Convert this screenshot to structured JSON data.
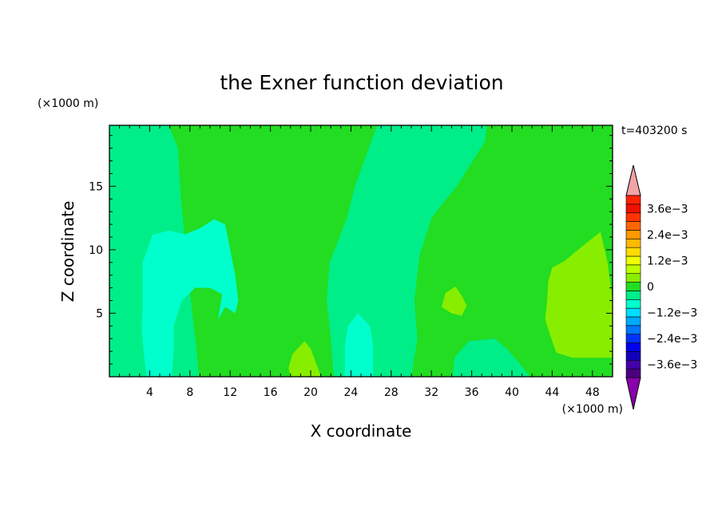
{
  "chart_data": {
    "type": "contour",
    "title": "the Exner function deviation",
    "xlabel": "X coordinate",
    "ylabel": "Z coordinate",
    "x_unit": "(×1000 m)",
    "y_unit": "(×1000 m)",
    "time_label": "t=403200 s",
    "xlim": [
      0,
      50
    ],
    "ylim": [
      0,
      19.8
    ],
    "x_ticks": [
      {
        "value": 4,
        "label": "4"
      },
      {
        "value": 8,
        "label": "8"
      },
      {
        "value": 12,
        "label": "12"
      },
      {
        "value": 16,
        "label": "16"
      },
      {
        "value": 20,
        "label": "20"
      },
      {
        "value": 24,
        "label": "24"
      },
      {
        "value": 28,
        "label": "28"
      },
      {
        "value": 32,
        "label": "32"
      },
      {
        "value": 36,
        "label": "36"
      },
      {
        "value": 40,
        "label": "40"
      },
      {
        "value": 44,
        "label": "44"
      },
      {
        "value": 48,
        "label": "48"
      }
    ],
    "y_ticks": [
      {
        "value": 5,
        "label": "5"
      },
      {
        "value": 10,
        "label": "10"
      },
      {
        "value": 15,
        "label": "15"
      }
    ],
    "background_level_color": "#22dd22",
    "regions": [
      {
        "name": "left-band-slightly-negative",
        "color": "#00ee88",
        "points": [
          [
            0,
            19.8
          ],
          [
            5.9,
            19.8
          ],
          [
            6.8,
            18.0
          ],
          [
            7.1,
            14.0
          ],
          [
            7.6,
            10.0
          ],
          [
            8.1,
            6.0
          ],
          [
            8.6,
            2.5
          ],
          [
            8.9,
            0
          ],
          [
            0,
            0
          ]
        ]
      },
      {
        "name": "right-band-slightly-negative",
        "color": "#00ee88",
        "points": [
          [
            30.0,
            0
          ],
          [
            30.6,
            3.0
          ],
          [
            30.3,
            6.0
          ],
          [
            30.8,
            9.5
          ],
          [
            32.0,
            12.5
          ],
          [
            34.5,
            15.0
          ],
          [
            37.3,
            18.5
          ],
          [
            37.5,
            19.8
          ],
          [
            26.6,
            19.8
          ],
          [
            24.4,
            15.0
          ],
          [
            23.6,
            12.5
          ],
          [
            21.9,
            9.0
          ],
          [
            21.6,
            6.0
          ],
          [
            22.0,
            3.0
          ],
          [
            22.3,
            0
          ]
        ]
      },
      {
        "name": "bottom-right-patch-slightly-negative",
        "color": "#00ee88",
        "points": [
          [
            34.3,
            1.5
          ],
          [
            35.7,
            2.8
          ],
          [
            38.3,
            3.0
          ],
          [
            39.5,
            2.2
          ],
          [
            40.8,
            1.0
          ],
          [
            41.8,
            0
          ],
          [
            34.1,
            0
          ]
        ]
      },
      {
        "name": "upper-left-cell-negative",
        "color": "#00ffcc",
        "points": [
          [
            3.3,
            5.5
          ],
          [
            3.3,
            9.0
          ],
          [
            4.3,
            11.2
          ],
          [
            6.0,
            11.5
          ],
          [
            7.5,
            11.2
          ],
          [
            9.0,
            11.7
          ],
          [
            10.4,
            12.4
          ],
          [
            11.5,
            12.0
          ],
          [
            12.0,
            10.0
          ],
          [
            12.5,
            8.0
          ],
          [
            12.8,
            6.0
          ],
          [
            12.5,
            5.0
          ],
          [
            11.5,
            5.5
          ],
          [
            10.8,
            4.5
          ],
          [
            11.2,
            6.5
          ],
          [
            10.0,
            7.0
          ],
          [
            8.5,
            7.0
          ],
          [
            7.2,
            6.0
          ],
          [
            6.4,
            4.0
          ],
          [
            6.4,
            2.0
          ],
          [
            6.2,
            0
          ],
          [
            3.7,
            0
          ],
          [
            3.4,
            2.0
          ],
          [
            3.2,
            4.0
          ]
        ]
      },
      {
        "name": "lower-middle-cell-negative",
        "color": "#00ffcc",
        "points": [
          [
            23.4,
            0
          ],
          [
            23.4,
            2.5
          ],
          [
            23.7,
            4.0
          ],
          [
            24.7,
            5.0
          ],
          [
            25.9,
            4.0
          ],
          [
            26.2,
            2.5
          ],
          [
            26.2,
            0
          ]
        ]
      },
      {
        "name": "bottom-center-patch-slightly-positive",
        "color": "#88ee00",
        "points": [
          [
            17.8,
            0.7
          ],
          [
            18.2,
            1.8
          ],
          [
            19.4,
            2.8
          ],
          [
            20.0,
            2.2
          ],
          [
            20.8,
            0.5
          ],
          [
            21.0,
            0
          ],
          [
            18.0,
            0
          ]
        ]
      },
      {
        "name": "right-patch-slightly-positive",
        "color": "#88ee00",
        "points": [
          [
            43.6,
            7.5
          ],
          [
            44.0,
            8.6
          ],
          [
            45.2,
            9.1
          ],
          [
            47.5,
            10.6
          ],
          [
            48.8,
            11.4
          ],
          [
            49.5,
            9.0
          ],
          [
            50,
            6.0
          ],
          [
            50,
            1.5
          ],
          [
            49.0,
            1.5
          ],
          [
            46.0,
            1.5
          ],
          [
            44.4,
            1.9
          ],
          [
            44.0,
            2.8
          ],
          [
            43.3,
            4.5
          ],
          [
            43.5,
            6.0
          ]
        ]
      },
      {
        "name": "small-patch-slightly-positive",
        "color": "#88ee00",
        "points": [
          [
            33.0,
            5.5
          ],
          [
            33.4,
            6.6
          ],
          [
            34.4,
            7.1
          ],
          [
            35.0,
            6.4
          ],
          [
            35.5,
            5.6
          ],
          [
            35.0,
            4.8
          ],
          [
            34.0,
            5.0
          ]
        ]
      }
    ],
    "colorbar": {
      "levels": [
        {
          "color": "#4b0082",
          "label": ""
        },
        {
          "color": "#4400aa",
          "label": "−3.6e−3"
        },
        {
          "color": "#1100bb",
          "label": ""
        },
        {
          "color": "#0000ee",
          "label": ""
        },
        {
          "color": "#0033ff",
          "label": "−2.4e−3"
        },
        {
          "color": "#0077ff",
          "label": ""
        },
        {
          "color": "#00aaff",
          "label": ""
        },
        {
          "color": "#00ddff",
          "label": "−1.2e−3"
        },
        {
          "color": "#00ffcc",
          "label": ""
        },
        {
          "color": "#00ee88",
          "label": ""
        },
        {
          "color": "#22dd22",
          "label": "0"
        },
        {
          "color": "#88ee00",
          "label": ""
        },
        {
          "color": "#bbff00",
          "label": ""
        },
        {
          "color": "#eeff00",
          "label": "1.2e−3"
        },
        {
          "color": "#ffdd00",
          "label": ""
        },
        {
          "color": "#ffbb00",
          "label": ""
        },
        {
          "color": "#ff9900",
          "label": "2.4e−3"
        },
        {
          "color": "#ff6600",
          "label": ""
        },
        {
          "color": "#ff3300",
          "label": ""
        },
        {
          "color": "#ee1100",
          "label": "3.6e−3"
        },
        {
          "color": "#ff2200",
          "label": ""
        }
      ],
      "under_color": "#8800aa",
      "over_color": "#f4a4a4"
    }
  }
}
